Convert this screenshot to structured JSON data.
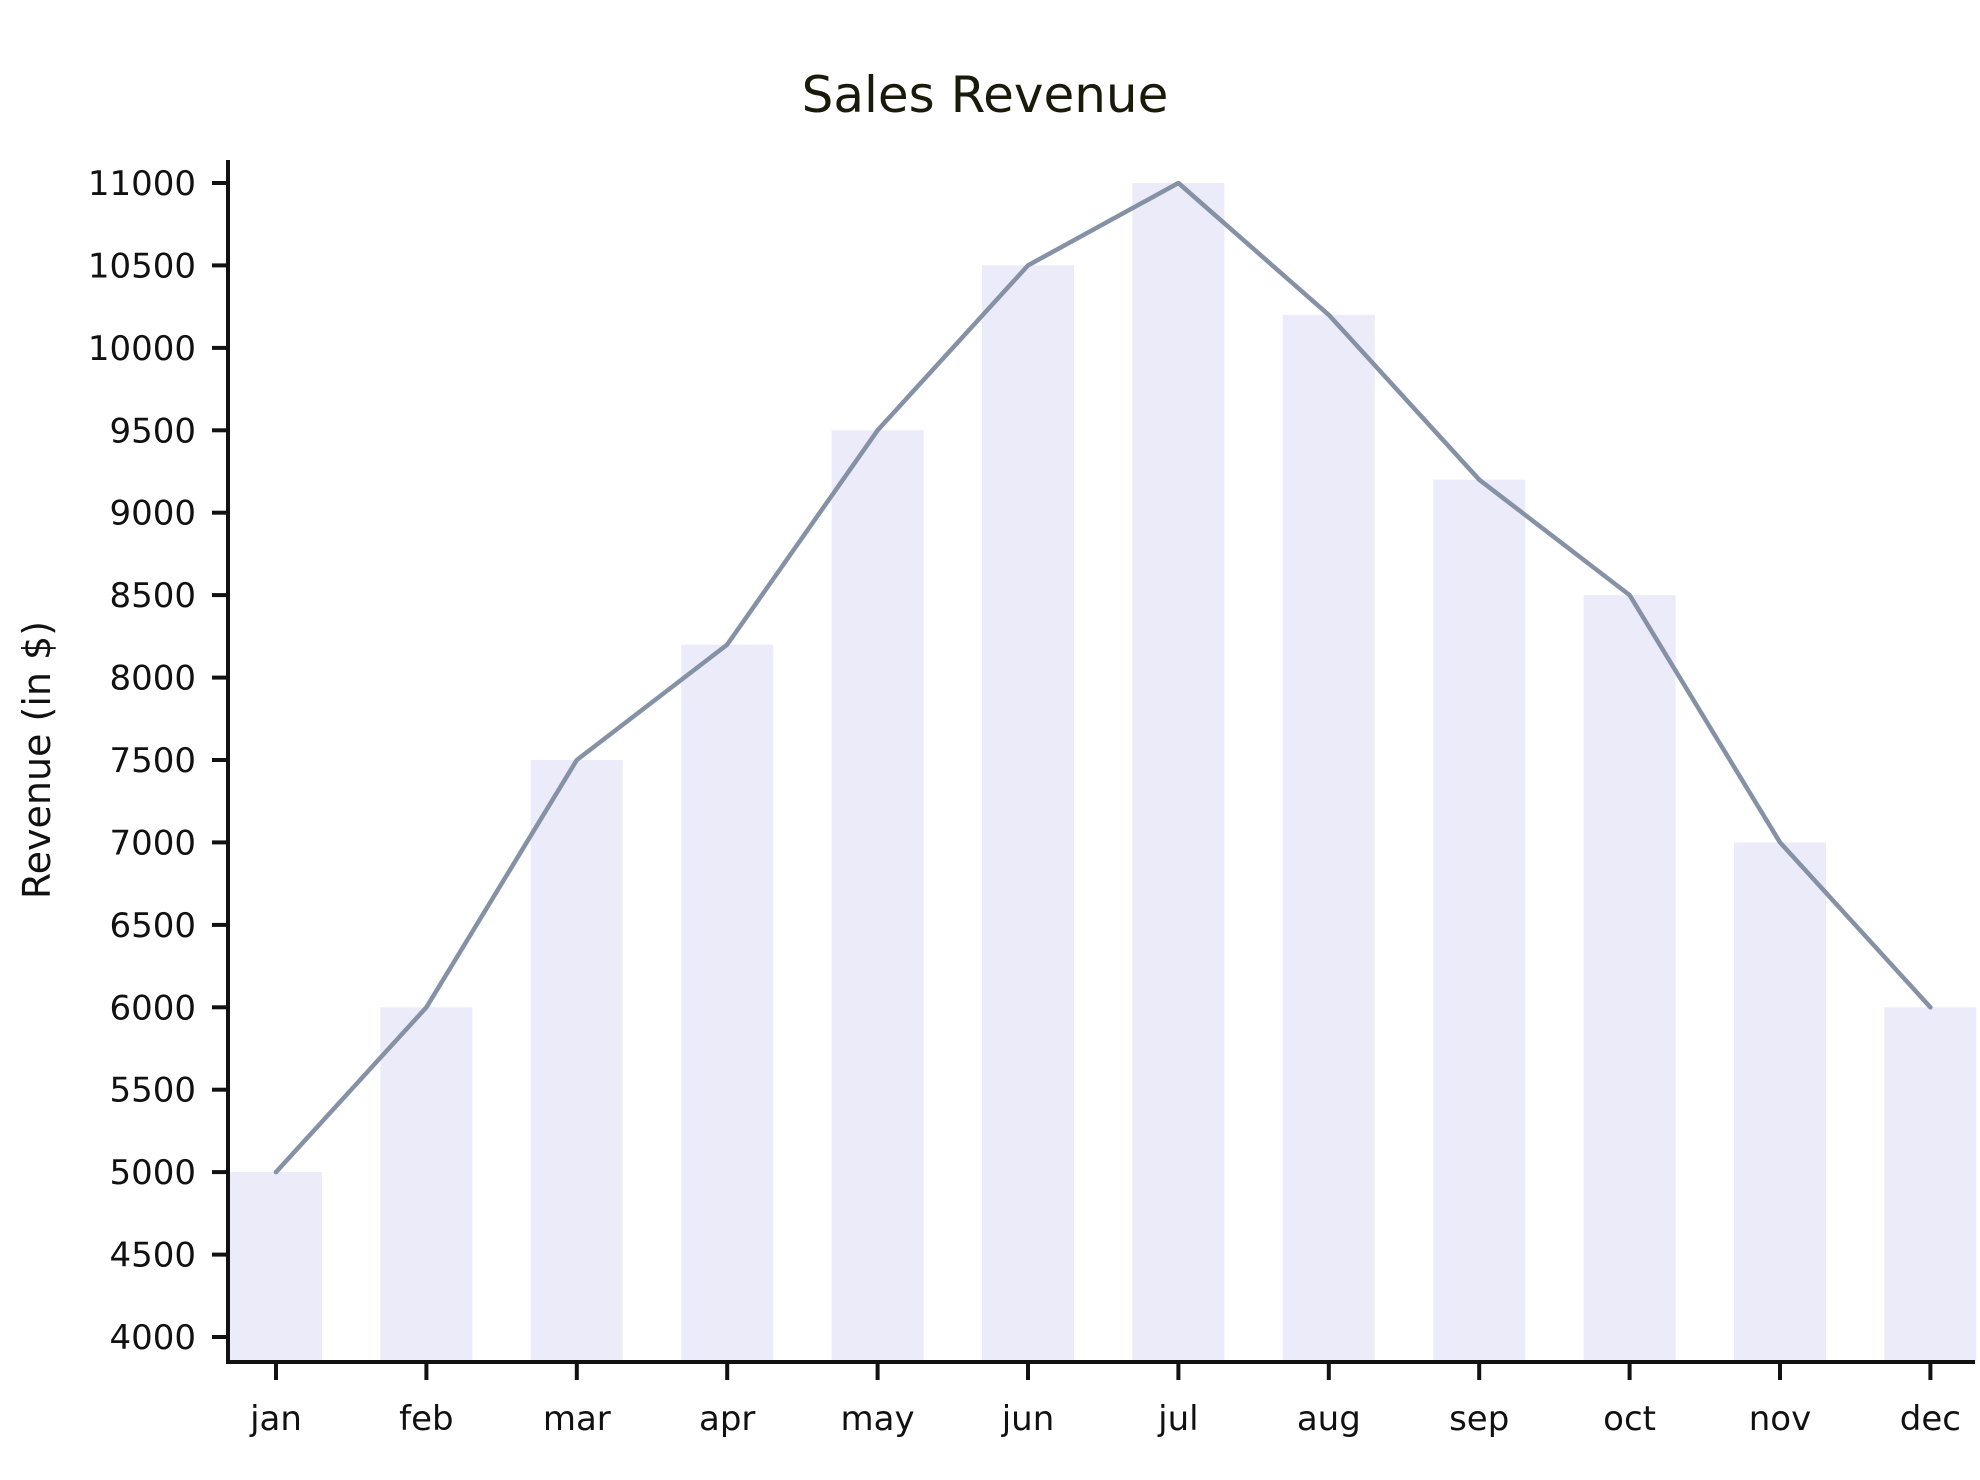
{
  "colors": {
    "bar": "#ebebfa",
    "line": "#8592a5",
    "axis": "#111111",
    "title": "#1a1a0a"
  },
  "chart_data": {
    "type": "bar",
    "title": "Sales Revenue",
    "xlabel": "",
    "ylabel": "Revenue (in $)",
    "categories": [
      "jan",
      "feb",
      "mar",
      "apr",
      "may",
      "jun",
      "jul",
      "aug",
      "sep",
      "oct",
      "nov",
      "dec"
    ],
    "series": [
      {
        "type": "bar",
        "values": [
          5000,
          6000,
          7500,
          8200,
          9500,
          10500,
          11000,
          10200,
          9200,
          8500,
          7000,
          6000
        ]
      },
      {
        "type": "line",
        "values": [
          5000,
          6000,
          7500,
          8200,
          9500,
          10500,
          11000,
          10200,
          9200,
          8500,
          7000,
          6000
        ]
      }
    ],
    "ylim": [
      4000,
      11000
    ],
    "yticks": [
      "4000",
      "4500",
      "5000",
      "5500",
      "6000",
      "6500",
      "7000",
      "7500",
      "8000",
      "8500",
      "9000",
      "9500",
      "10000",
      "10500",
      "11000"
    ],
    "grid": false,
    "legend": "none"
  }
}
